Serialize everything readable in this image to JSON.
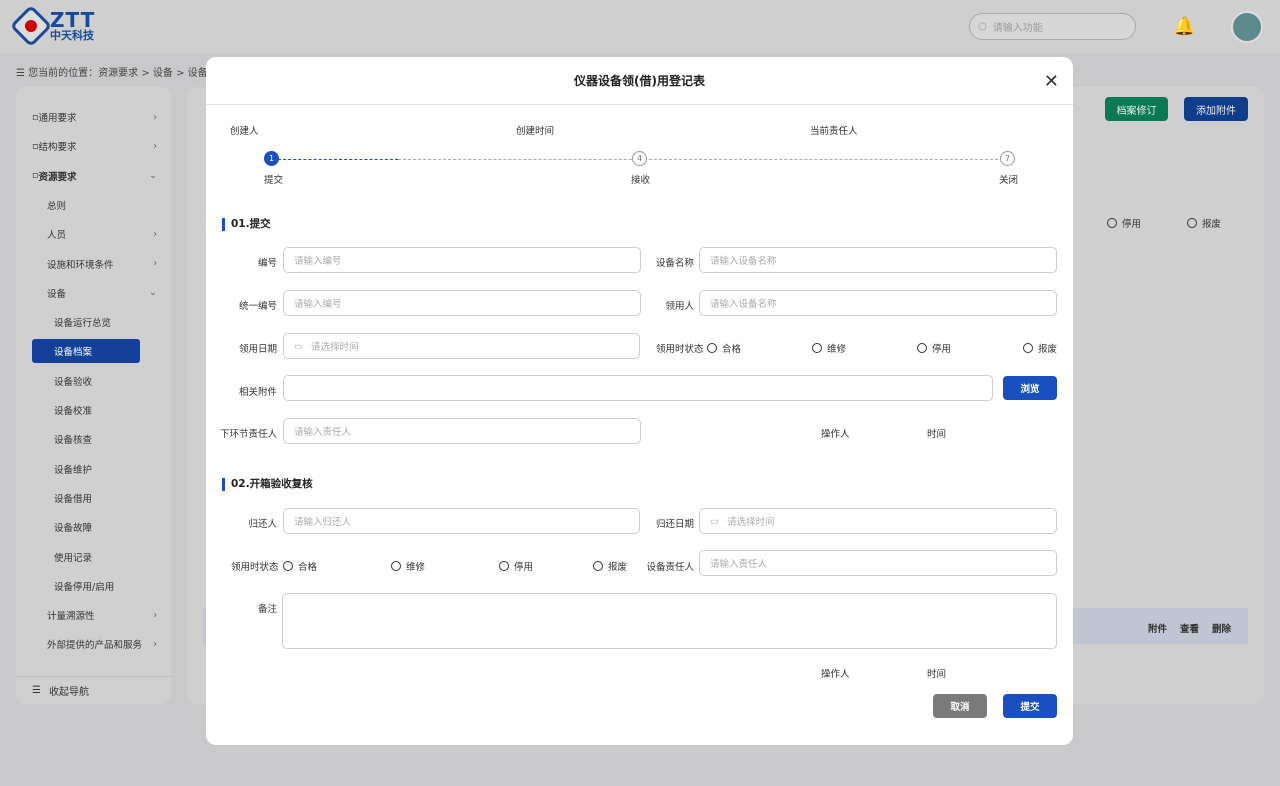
{
  "header": {
    "logo_text": "ZTT",
    "logo_subtext": "中天科技",
    "search_placeholder": "请输入功能"
  },
  "breadcrumb": "您当前的位置：资源要求 > 设备 > 设备档案",
  "sidebar": {
    "items": [
      {
        "label": "通用要求",
        "chev": ">"
      },
      {
        "label": "结构要求",
        "chev": ">"
      },
      {
        "label": "资源要求",
        "chev": "v"
      },
      {
        "label": "总则"
      },
      {
        "label": "人员",
        "chev": ">"
      },
      {
        "label": "设施和环境条件",
        "chev": ">"
      },
      {
        "label": "设备",
        "chev": "v"
      },
      {
        "label": "设备运行总览"
      },
      {
        "label": "设备档案"
      },
      {
        "label": "设备验收"
      },
      {
        "label": "设备校准"
      },
      {
        "label": "设备核查"
      },
      {
        "label": "设备维护"
      },
      {
        "label": "设备借用"
      },
      {
        "label": "设备故障"
      },
      {
        "label": "使用记录"
      },
      {
        "label": "设备停用/启用"
      },
      {
        "label": "计量溯源性",
        "chev": ">"
      },
      {
        "label": "外部提供的产品和服务",
        "chev": ">"
      }
    ],
    "collapse": "收起导航"
  },
  "main": {
    "revise_button": "档案修订",
    "add_attachment_button": "添加附件",
    "radio_disable": "停用",
    "radio_scrap": "报废",
    "actions": [
      "附件",
      "查看",
      "删除"
    ],
    "colors": {
      "green": "#0a7a55",
      "blue": "#0f3d8a"
    }
  },
  "modal": {
    "title": "仪器设备领(借)用登记表",
    "meta": {
      "creator": "创建人",
      "created_time": "创建时间",
      "current_owner": "当前责任人"
    },
    "steps": [
      {
        "num": "1",
        "label": "提交"
      },
      {
        "num": "4",
        "label": "接收"
      },
      {
        "num": "7",
        "label": "关闭"
      }
    ],
    "section1": {
      "title": "01.提交",
      "number_label": "编号",
      "number_placeholder": "请输入编号",
      "name_label": "设备名称",
      "name_placeholder": "请输入设备名称",
      "unified_label": "统一编号",
      "unified_placeholder": "请输入编号",
      "borrower_label": "领用人",
      "borrower_placeholder": "请输入设备名称",
      "date_label": "领用日期",
      "date_placeholder": "请选择时间",
      "status_label": "领用时状态",
      "status_options": [
        "合格",
        "维修",
        "停用",
        "报废"
      ],
      "attach_label": "相关附件",
      "browse": "浏览",
      "next_label": "下环节责任人",
      "next_placeholder": "请输入责任人",
      "operator": "操作人",
      "time": "时间"
    },
    "section2": {
      "title": "02.开箱验收复核",
      "returner_label": "归还人",
      "returner_placeholder": "请输入归还人",
      "return_date_label": "归还日期",
      "return_date_placeholder": "请选择时间",
      "status_label": "领用时状态",
      "status_options": [
        "合格",
        "维修",
        "停用",
        "报废"
      ],
      "owner_label": "设备责任人",
      "owner_placeholder": "请输入责任人",
      "remark_label": "备注",
      "operator": "操作人",
      "time": "时间"
    },
    "cancel": "取消",
    "submit": "提交",
    "accent": "#1a4fc0"
  }
}
